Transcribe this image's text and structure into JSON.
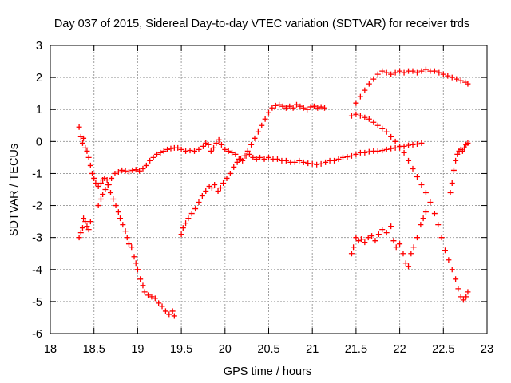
{
  "chart_data": {
    "type": "scatter",
    "title": "Day 037 of 2015, Sidereal Day-to-day VTEC variation (SDTVAR) for receiver trds",
    "xlabel": "GPS time / hours",
    "ylabel": "SDTVAR / TECUs",
    "xlim": [
      18,
      23
    ],
    "ylim": [
      -6,
      3
    ],
    "xticks": [
      18,
      18.5,
      19,
      19.5,
      20,
      20.5,
      21,
      21.5,
      22,
      22.5,
      23
    ],
    "xtick_labels": [
      "18",
      "18.5",
      "19",
      "19.5",
      "20",
      "20.5",
      "21",
      "21.5",
      "22",
      "22.5",
      "23"
    ],
    "yticks": [
      -6,
      -5,
      -4,
      -3,
      -2,
      -1,
      0,
      1,
      2,
      3
    ],
    "ytick_labels": [
      "-6",
      "-5",
      "-4",
      "-3",
      "-2",
      "-1",
      "0",
      "1",
      "2",
      "3"
    ],
    "grid": true,
    "marker": "+",
    "marker_color": "#ff0000",
    "series": [
      {
        "points": [
          [
            18.33,
            0.45
          ],
          [
            18.35,
            0.15
          ],
          [
            18.37,
            -0.05
          ],
          [
            18.38,
            0.1
          ],
          [
            18.4,
            -0.2
          ],
          [
            18.42,
            -0.3
          ],
          [
            18.44,
            -0.5
          ],
          [
            18.46,
            -0.75
          ],
          [
            18.48,
            -1.0
          ],
          [
            18.5,
            -1.15
          ],
          [
            18.52,
            -1.3
          ],
          [
            18.55,
            -1.4
          ],
          [
            18.58,
            -1.3
          ],
          [
            18.6,
            -1.2
          ],
          [
            18.62,
            -1.15
          ],
          [
            18.65,
            -1.2
          ],
          [
            18.67,
            -1.35
          ],
          [
            18.69,
            -1.6
          ],
          [
            18.72,
            -1.8
          ],
          [
            18.75,
            -2.0
          ],
          [
            18.78,
            -2.2
          ],
          [
            18.8,
            -2.4
          ],
          [
            18.83,
            -2.6
          ],
          [
            18.86,
            -2.8
          ],
          [
            18.88,
            -3.0
          ],
          [
            18.9,
            -3.2
          ],
          [
            18.93,
            -3.3
          ],
          [
            18.96,
            -3.6
          ],
          [
            18.98,
            -3.8
          ],
          [
            19.0,
            -4.0
          ],
          [
            19.03,
            -4.3
          ],
          [
            19.06,
            -4.5
          ],
          [
            19.08,
            -4.7
          ],
          [
            19.12,
            -4.8
          ],
          [
            19.16,
            -4.85
          ],
          [
            19.2,
            -4.9
          ],
          [
            19.24,
            -5.05
          ],
          [
            19.28,
            -5.15
          ],
          [
            19.32,
            -5.3
          ],
          [
            19.36,
            -5.4
          ],
          [
            19.4,
            -5.3
          ],
          [
            19.42,
            -5.45
          ]
        ]
      },
      {
        "points": [
          [
            18.33,
            -3.0
          ],
          [
            18.35,
            -2.85
          ],
          [
            18.37,
            -2.7
          ],
          [
            18.38,
            -2.4
          ],
          [
            18.4,
            -2.5
          ],
          [
            18.42,
            -2.65
          ],
          [
            18.44,
            -2.75
          ],
          [
            18.46,
            -2.5
          ]
        ]
      },
      {
        "points": [
          [
            18.55,
            -2.0
          ],
          [
            18.58,
            -1.8
          ],
          [
            18.6,
            -1.65
          ],
          [
            18.63,
            -1.5
          ],
          [
            18.66,
            -1.35
          ],
          [
            18.7,
            -1.15
          ],
          [
            18.74,
            -1.0
          ],
          [
            18.78,
            -0.95
          ],
          [
            18.82,
            -0.9
          ],
          [
            18.86,
            -0.92
          ],
          [
            18.9,
            -0.95
          ],
          [
            18.94,
            -0.9
          ],
          [
            18.98,
            -0.88
          ],
          [
            19.02,
            -0.92
          ],
          [
            19.06,
            -0.85
          ],
          [
            19.1,
            -0.75
          ],
          [
            19.14,
            -0.6
          ],
          [
            19.18,
            -0.5
          ],
          [
            19.22,
            -0.4
          ],
          [
            19.26,
            -0.35
          ],
          [
            19.3,
            -0.3
          ],
          [
            19.34,
            -0.25
          ],
          [
            19.38,
            -0.22
          ],
          [
            19.42,
            -0.2
          ],
          [
            19.46,
            -0.2
          ],
          [
            19.5,
            -0.25
          ],
          [
            19.55,
            -0.3
          ],
          [
            19.6,
            -0.28
          ],
          [
            19.65,
            -0.3
          ],
          [
            19.7,
            -0.25
          ],
          [
            19.75,
            -0.15
          ],
          [
            19.78,
            -0.05
          ],
          [
            19.81,
            -0.1
          ],
          [
            19.84,
            -0.3
          ],
          [
            19.87,
            -0.2
          ],
          [
            19.9,
            -0.05
          ],
          [
            19.93,
            0.05
          ],
          [
            19.96,
            -0.1
          ],
          [
            20.0,
            -0.25
          ],
          [
            20.04,
            -0.3
          ],
          [
            20.08,
            -0.35
          ],
          [
            20.12,
            -0.4
          ],
          [
            20.16,
            -0.55
          ],
          [
            20.2,
            -0.6
          ],
          [
            20.24,
            -0.45
          ],
          [
            20.28,
            -0.4
          ],
          [
            20.32,
            -0.5
          ],
          [
            20.36,
            -0.55
          ],
          [
            20.4,
            -0.5
          ],
          [
            20.45,
            -0.55
          ],
          [
            20.5,
            -0.5
          ],
          [
            20.55,
            -0.55
          ],
          [
            20.6,
            -0.55
          ],
          [
            20.65,
            -0.6
          ],
          [
            20.7,
            -0.6
          ],
          [
            20.75,
            -0.65
          ],
          [
            20.8,
            -0.65
          ],
          [
            20.85,
            -0.6
          ],
          [
            20.9,
            -0.65
          ],
          [
            20.95,
            -0.68
          ],
          [
            21.0,
            -0.7
          ],
          [
            21.05,
            -0.72
          ],
          [
            21.1,
            -0.7
          ],
          [
            21.15,
            -0.65
          ],
          [
            21.2,
            -0.6
          ],
          [
            21.25,
            -0.6
          ],
          [
            21.3,
            -0.55
          ],
          [
            21.35,
            -0.5
          ],
          [
            21.4,
            -0.48
          ],
          [
            21.45,
            -0.45
          ],
          [
            21.5,
            -0.4
          ],
          [
            21.55,
            -0.35
          ],
          [
            21.6,
            -0.35
          ],
          [
            21.65,
            -0.32
          ],
          [
            21.7,
            -0.3
          ],
          [
            21.75,
            -0.3
          ],
          [
            21.8,
            -0.28
          ],
          [
            21.85,
            -0.25
          ],
          [
            21.9,
            -0.22
          ],
          [
            21.95,
            -0.2
          ],
          [
            22.0,
            -0.2
          ],
          [
            22.05,
            -0.15
          ],
          [
            22.1,
            -0.12
          ],
          [
            22.15,
            -0.1
          ],
          [
            22.2,
            -0.08
          ],
          [
            22.25,
            -0.05
          ]
        ]
      },
      {
        "points": [
          [
            19.5,
            -2.9
          ],
          [
            19.52,
            -2.7
          ],
          [
            19.55,
            -2.55
          ],
          [
            19.58,
            -2.4
          ],
          [
            19.62,
            -2.25
          ],
          [
            19.66,
            -2.1
          ],
          [
            19.7,
            -1.9
          ],
          [
            19.74,
            -1.7
          ],
          [
            19.78,
            -1.55
          ],
          [
            19.82,
            -1.4
          ],
          [
            19.85,
            -1.45
          ],
          [
            19.88,
            -1.35
          ],
          [
            19.92,
            -1.55
          ],
          [
            19.95,
            -1.45
          ],
          [
            19.98,
            -1.3
          ],
          [
            20.02,
            -1.15
          ],
          [
            20.06,
            -1.0
          ],
          [
            20.1,
            -0.8
          ],
          [
            20.14,
            -0.65
          ],
          [
            20.18,
            -0.55
          ],
          [
            20.22,
            -0.45
          ],
          [
            20.26,
            -0.3
          ],
          [
            20.3,
            -0.1
          ],
          [
            20.34,
            0.1
          ],
          [
            20.38,
            0.3
          ],
          [
            20.42,
            0.5
          ],
          [
            20.46,
            0.7
          ],
          [
            20.5,
            0.9
          ],
          [
            20.54,
            1.05
          ],
          [
            20.58,
            1.12
          ],
          [
            20.62,
            1.15
          ],
          [
            20.66,
            1.1
          ],
          [
            20.7,
            1.05
          ],
          [
            20.74,
            1.1
          ],
          [
            20.78,
            1.05
          ],
          [
            20.82,
            1.15
          ],
          [
            20.86,
            1.1
          ],
          [
            20.9,
            1.05
          ],
          [
            20.94,
            1.0
          ],
          [
            20.98,
            1.08
          ],
          [
            21.02,
            1.1
          ],
          [
            21.06,
            1.05
          ],
          [
            21.1,
            1.08
          ],
          [
            21.14,
            1.05
          ]
        ]
      },
      {
        "points": [
          [
            21.45,
            0.8
          ],
          [
            21.5,
            0.85
          ],
          [
            21.55,
            0.8
          ],
          [
            21.6,
            0.75
          ],
          [
            21.65,
            0.7
          ],
          [
            21.7,
            0.6
          ],
          [
            21.75,
            0.5
          ],
          [
            21.8,
            0.4
          ],
          [
            21.85,
            0.3
          ],
          [
            21.9,
            0.15
          ],
          [
            21.95,
            0.0
          ],
          [
            22.0,
            -0.15
          ],
          [
            22.05,
            -0.35
          ],
          [
            22.1,
            -0.6
          ],
          [
            22.15,
            -0.85
          ],
          [
            22.2,
            -1.1
          ],
          [
            22.25,
            -1.35
          ],
          [
            22.3,
            -1.6
          ],
          [
            22.35,
            -1.9
          ],
          [
            22.4,
            -2.25
          ],
          [
            22.44,
            -2.6
          ],
          [
            22.48,
            -3.0
          ],
          [
            22.52,
            -3.4
          ],
          [
            22.56,
            -3.7
          ],
          [
            22.6,
            -4.0
          ],
          [
            22.64,
            -4.3
          ],
          [
            22.67,
            -4.6
          ],
          [
            22.7,
            -4.85
          ],
          [
            22.73,
            -4.95
          ],
          [
            22.76,
            -4.85
          ],
          [
            22.78,
            -4.7
          ]
        ]
      },
      {
        "points": [
          [
            21.5,
            1.2
          ],
          [
            21.55,
            1.4
          ],
          [
            21.6,
            1.6
          ],
          [
            21.65,
            1.8
          ],
          [
            21.7,
            1.95
          ],
          [
            21.75,
            2.1
          ],
          [
            21.8,
            2.2
          ],
          [
            21.85,
            2.15
          ],
          [
            21.9,
            2.1
          ],
          [
            21.95,
            2.15
          ],
          [
            22.0,
            2.2
          ],
          [
            22.05,
            2.15
          ],
          [
            22.1,
            2.2
          ],
          [
            22.15,
            2.2
          ],
          [
            22.2,
            2.15
          ],
          [
            22.25,
            2.2
          ],
          [
            22.3,
            2.25
          ],
          [
            22.35,
            2.2
          ],
          [
            22.4,
            2.2
          ],
          [
            22.45,
            2.15
          ],
          [
            22.5,
            2.1
          ],
          [
            22.55,
            2.05
          ],
          [
            22.6,
            2.0
          ],
          [
            22.65,
            1.95
          ],
          [
            22.7,
            1.9
          ],
          [
            22.75,
            1.85
          ],
          [
            22.78,
            1.8
          ]
        ]
      },
      {
        "points": [
          [
            21.45,
            -3.5
          ],
          [
            21.47,
            -3.3
          ],
          [
            21.5,
            -3.0
          ],
          [
            21.53,
            -3.1
          ],
          [
            21.56,
            -3.05
          ],
          [
            21.6,
            -3.15
          ],
          [
            21.64,
            -3.0
          ],
          [
            21.68,
            -2.95
          ],
          [
            21.72,
            -3.1
          ],
          [
            21.76,
            -2.9
          ],
          [
            21.8,
            -2.75
          ],
          [
            21.85,
            -2.85
          ],
          [
            21.9,
            -2.65
          ],
          [
            21.93,
            -3.1
          ],
          [
            21.96,
            -3.3
          ],
          [
            22.0,
            -3.2
          ],
          [
            22.04,
            -3.5
          ],
          [
            22.07,
            -3.8
          ],
          [
            22.1,
            -3.9
          ],
          [
            22.13,
            -3.5
          ],
          [
            22.16,
            -3.3
          ],
          [
            22.2,
            -3.0
          ],
          [
            22.24,
            -2.6
          ],
          [
            22.27,
            -2.4
          ],
          [
            22.3,
            -2.2
          ]
        ]
      },
      {
        "points": [
          [
            22.58,
            -1.6
          ],
          [
            22.6,
            -1.3
          ],
          [
            22.62,
            -0.9
          ],
          [
            22.64,
            -0.6
          ],
          [
            22.66,
            -0.4
          ],
          [
            22.68,
            -0.3
          ],
          [
            22.7,
            -0.25
          ],
          [
            22.72,
            -0.3
          ],
          [
            22.74,
            -0.2
          ],
          [
            22.76,
            -0.1
          ],
          [
            22.78,
            -0.05
          ]
        ]
      }
    ]
  }
}
